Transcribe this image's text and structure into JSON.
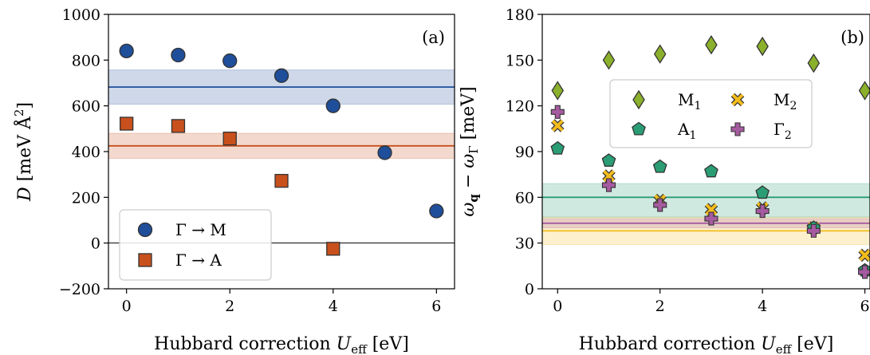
{
  "chart_data": [
    {
      "type": "scatter",
      "panel_label": "(a)",
      "xlabel": "Hubbard correction U_eff [eV]",
      "ylabel": "D [meV Å²]",
      "xlim": [
        -0.35,
        6.35
      ],
      "ylim": [
        -200,
        1000
      ],
      "xticks": [
        0,
        2,
        4,
        6
      ],
      "yticks": [
        -200,
        0,
        200,
        400,
        600,
        800,
        1000
      ],
      "grid": false,
      "zero_line": true,
      "legend_position": "lower-left",
      "series": [
        {
          "name": "Γ → M",
          "marker": "circle",
          "color": "#1f4e9a",
          "x": [
            0,
            1,
            2,
            3,
            4,
            5,
            6
          ],
          "y": [
            840,
            822,
            797,
            732,
            600,
            395,
            140
          ],
          "band": {
            "center": 682,
            "low": 607,
            "high": 757
          }
        },
        {
          "name": "Γ → A",
          "marker": "square",
          "color": "#c8501c",
          "x": [
            0,
            1,
            2,
            3,
            4
          ],
          "y": [
            522,
            512,
            457,
            272,
            -25
          ],
          "band": {
            "center": 425,
            "low": 370,
            "high": 480
          }
        }
      ]
    },
    {
      "type": "scatter",
      "panel_label": "(b)",
      "xlabel": "Hubbard correction U_eff [eV]",
      "ylabel": "ω_q − ω_Γ [meV]",
      "xlim": [
        -0.3,
        6.1
      ],
      "ylim": [
        0,
        180
      ],
      "xticks": [
        0,
        2,
        4,
        6
      ],
      "yticks": [
        0,
        30,
        60,
        90,
        120,
        150,
        180
      ],
      "grid": false,
      "legend_position": "upper-center",
      "legend_columns": 2,
      "series": [
        {
          "name": "M₁",
          "marker": "diamond",
          "color": "#8ab02c",
          "x": [
            0,
            1,
            2,
            3,
            4,
            5,
            6
          ],
          "y": [
            130,
            150,
            154,
            160,
            159,
            148,
            130
          ]
        },
        {
          "name": "M₂",
          "marker": "x",
          "color": "#f3bc1c",
          "x": [
            0,
            1,
            2,
            3,
            4,
            5,
            6
          ],
          "y": [
            107,
            74,
            58,
            52,
            53,
            40,
            22
          ],
          "band": {
            "center": 38,
            "low": 29,
            "high": 47
          }
        },
        {
          "name": "A₁",
          "marker": "pentagon",
          "color": "#2a9d74",
          "x": [
            0,
            1,
            2,
            3,
            4,
            5,
            6
          ],
          "y": [
            92,
            84,
            80,
            77,
            63,
            40,
            12
          ],
          "band": {
            "center": 60,
            "low": 47,
            "high": 69
          }
        },
        {
          "name": "Γ₂",
          "marker": "plus",
          "color": "#a65ba0",
          "x": [
            0,
            1,
            2,
            3,
            4,
            5,
            6
          ],
          "y": [
            116,
            68,
            55,
            46,
            51,
            38,
            11
          ],
          "band": {
            "center": 43,
            "low": 40,
            "high": 46
          }
        }
      ]
    }
  ]
}
